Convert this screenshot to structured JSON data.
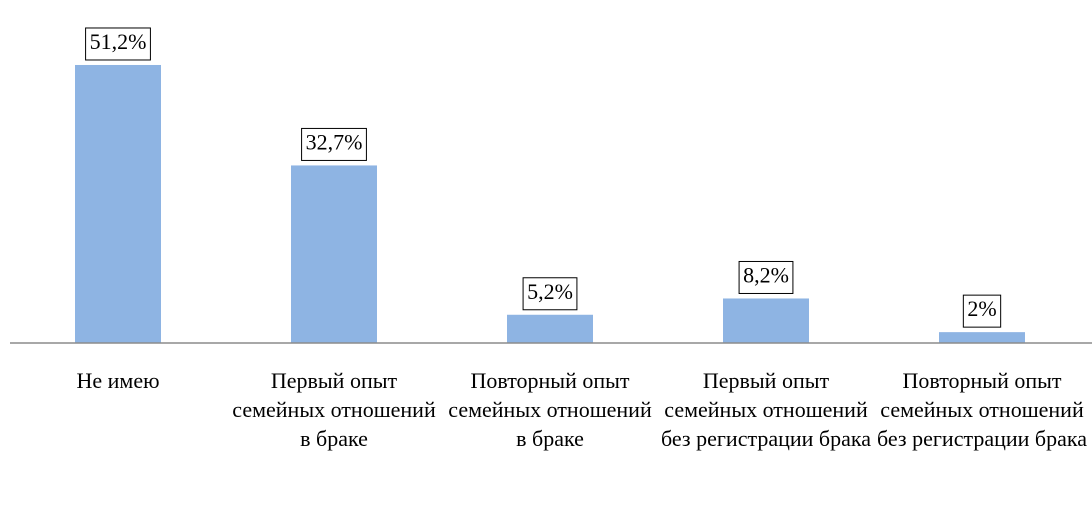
{
  "chart_data": {
    "type": "bar",
    "categories": [
      "Не имею",
      "Первый опыт семейных отношений в браке",
      "Повторный опыт семейных отношений в браке",
      "Первый опыт семейных отношений без регистрации брака",
      "Повторный опыт семейных отношений без регистрации брака"
    ],
    "values": [
      51.2,
      32.7,
      5.2,
      8.2,
      2
    ],
    "value_labels": [
      "51,2%",
      "32,7%",
      "5,2%",
      "8,2%",
      "2%"
    ],
    "color": "#8eb4e3"
  }
}
